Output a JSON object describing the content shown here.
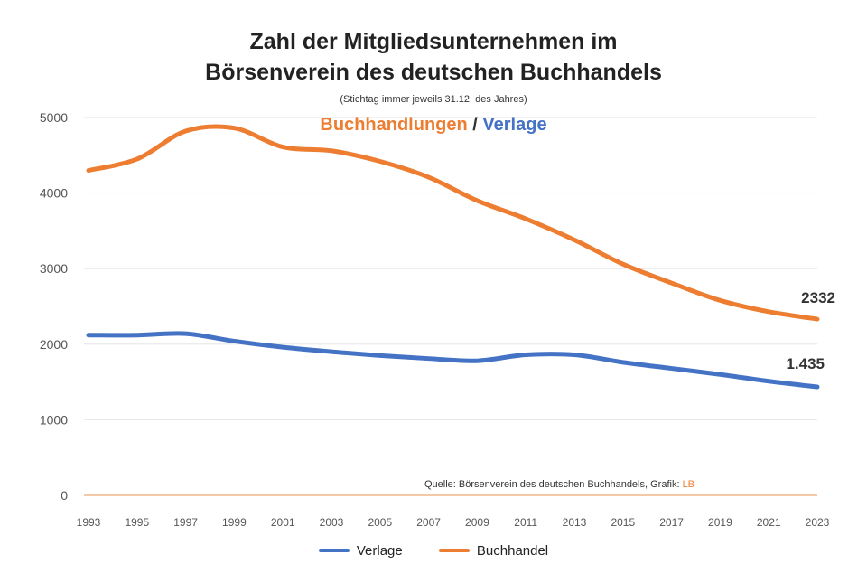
{
  "title_line1": "Zahl der Mitgliedsunternehmen im",
  "title_line2": "Börsenverein des deutschen Buchhandels",
  "subtitle": "(Stichtag immer jeweils 31.12. des Jahres)",
  "header_series": {
    "buchhandlungen": "Buchhandlungen",
    "separator": " / ",
    "verlage": "Verlage"
  },
  "source": "Quelle: Börsenverein des deutschen Buchhandels, Grafik: LB",
  "colors": {
    "verlage": "#4472C4",
    "buchhandel": "#ED7D31"
  },
  "chart_data": {
    "type": "line",
    "x": [
      "1993",
      "1995",
      "1997",
      "1999",
      "2001",
      "2003",
      "2005",
      "2007",
      "2009",
      "2011",
      "2013",
      "2015",
      "2017",
      "2019",
      "2021",
      "2023"
    ],
    "ylim": [
      0,
      5000
    ],
    "yticks": [
      "0",
      "1000",
      "2000",
      "3000",
      "4000",
      "5000"
    ],
    "grid": true,
    "legend_position": "bottom",
    "series": [
      {
        "name": "Verlage",
        "color": "#4472C4",
        "values": [
          2120,
          2120,
          2140,
          2040,
          1960,
          1900,
          1850,
          1810,
          1780,
          1860,
          1860,
          1760,
          1680,
          1600,
          1510,
          1435
        ]
      },
      {
        "name": "Buchhandel",
        "color": "#ED7D31",
        "values": [
          4300,
          4450,
          4820,
          4860,
          4610,
          4560,
          4420,
          4210,
          3900,
          3660,
          3380,
          3060,
          2810,
          2580,
          2430,
          2332
        ]
      }
    ],
    "end_labels": [
      "1.435",
      "2332"
    ]
  }
}
